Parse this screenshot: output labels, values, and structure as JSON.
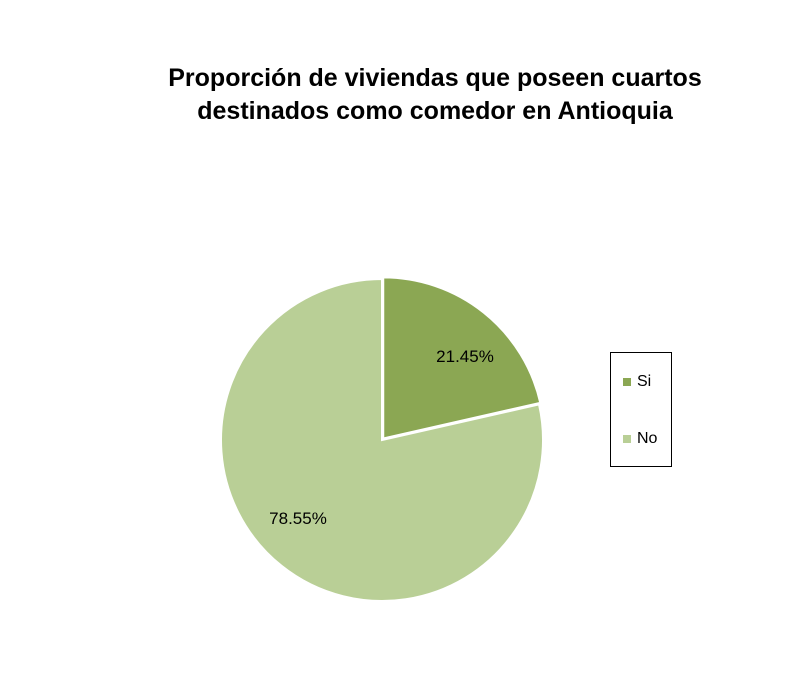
{
  "chart_data": {
    "type": "pie",
    "title": [
      "Proporción de viviendas que poseen cuartos",
      "destinados como comedor en Antioquia"
    ],
    "categories": [
      "Si",
      "No"
    ],
    "values": [
      21.45,
      78.55
    ],
    "labels": [
      "21.45%",
      "78.55%"
    ],
    "colors": [
      "#8ba753",
      "#b9cf96"
    ],
    "legend_position": "right"
  }
}
